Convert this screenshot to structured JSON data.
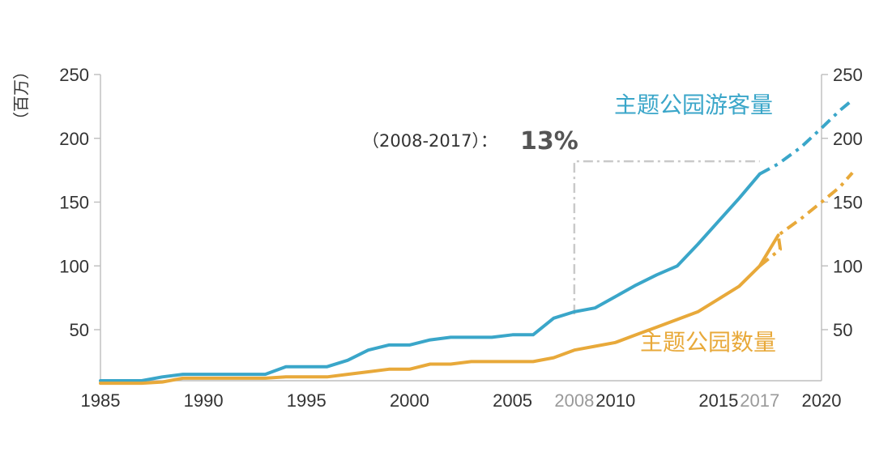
{
  "chart_data": {
    "type": "line",
    "unit_label": "（百万）",
    "x_ticks": [
      "1985",
      "1990",
      "1995",
      "2000",
      "2005",
      "2008",
      "2010",
      "2015",
      "2017",
      "2020"
    ],
    "highlight_ticks": [
      "2008",
      "2017"
    ],
    "xlim": [
      1985,
      2020
    ],
    "ylim": [
      10,
      250
    ],
    "y_ticks": [
      50,
      100,
      150,
      200,
      250
    ],
    "series": [
      {
        "name": "主题公园游客量",
        "color": "#3aa6c9",
        "solid_until": 2017,
        "points": [
          [
            1985,
            10
          ],
          [
            1986,
            10
          ],
          [
            1987,
            10
          ],
          [
            1988,
            13
          ],
          [
            1989,
            15
          ],
          [
            1990,
            15
          ],
          [
            1991,
            15
          ],
          [
            1992,
            15
          ],
          [
            1993,
            15
          ],
          [
            1994,
            21
          ],
          [
            1995,
            21
          ],
          [
            1996,
            21
          ],
          [
            1997,
            26
          ],
          [
            1998,
            34
          ],
          [
            1999,
            38
          ],
          [
            2000,
            38
          ],
          [
            2001,
            42
          ],
          [
            2002,
            44
          ],
          [
            2003,
            44
          ],
          [
            2004,
            44
          ],
          [
            2005,
            46
          ],
          [
            2006,
            46
          ],
          [
            2007,
            59
          ],
          [
            2008,
            64
          ],
          [
            2009,
            67
          ],
          [
            2010,
            76
          ],
          [
            2011,
            85
          ],
          [
            2012,
            93
          ],
          [
            2013,
            100
          ],
          [
            2014,
            117
          ],
          [
            2015,
            135
          ],
          [
            2016,
            153
          ],
          [
            2017,
            172
          ],
          [
            2017.9,
            180
          ],
          [
            2019,
            193
          ],
          [
            2020,
            208
          ],
          [
            2020.9,
            222
          ],
          [
            2021.5,
            230
          ]
        ]
      },
      {
        "name": "主题公园数量",
        "color": "#e8a93a",
        "solid_until": 2017.9,
        "points": [
          [
            1985,
            8
          ],
          [
            1986,
            8
          ],
          [
            1987,
            8
          ],
          [
            1988,
            9
          ],
          [
            1989,
            12
          ],
          [
            1990,
            12
          ],
          [
            1991,
            12
          ],
          [
            1992,
            12
          ],
          [
            1993,
            12
          ],
          [
            1994,
            13
          ],
          [
            1995,
            13
          ],
          [
            1996,
            13
          ],
          [
            1997,
            15
          ],
          [
            1998,
            17
          ],
          [
            1999,
            19
          ],
          [
            2000,
            19
          ],
          [
            2001,
            23
          ],
          [
            2002,
            23
          ],
          [
            2003,
            25
          ],
          [
            2004,
            25
          ],
          [
            2005,
            25
          ],
          [
            2006,
            25
          ],
          [
            2007,
            28
          ],
          [
            2008,
            34
          ],
          [
            2009,
            37
          ],
          [
            2010,
            40
          ],
          [
            2011,
            46
          ],
          [
            2012,
            52
          ],
          [
            2013,
            58
          ],
          [
            2014,
            64
          ],
          [
            2015,
            74
          ],
          [
            2016,
            84
          ],
          [
            2017,
            100
          ],
          [
            2018,
            113
          ],
          [
            2017.9,
            124
          ],
          [
            2019,
            137
          ],
          [
            2020,
            150
          ],
          [
            2020.9,
            162
          ],
          [
            2021.5,
            173
          ]
        ]
      }
    ],
    "annotation": {
      "text": "（2008-2017）：",
      "value": "13%",
      "from_x": 2008,
      "to_x": 2017,
      "level_y": 182,
      "base_y": 62
    }
  }
}
